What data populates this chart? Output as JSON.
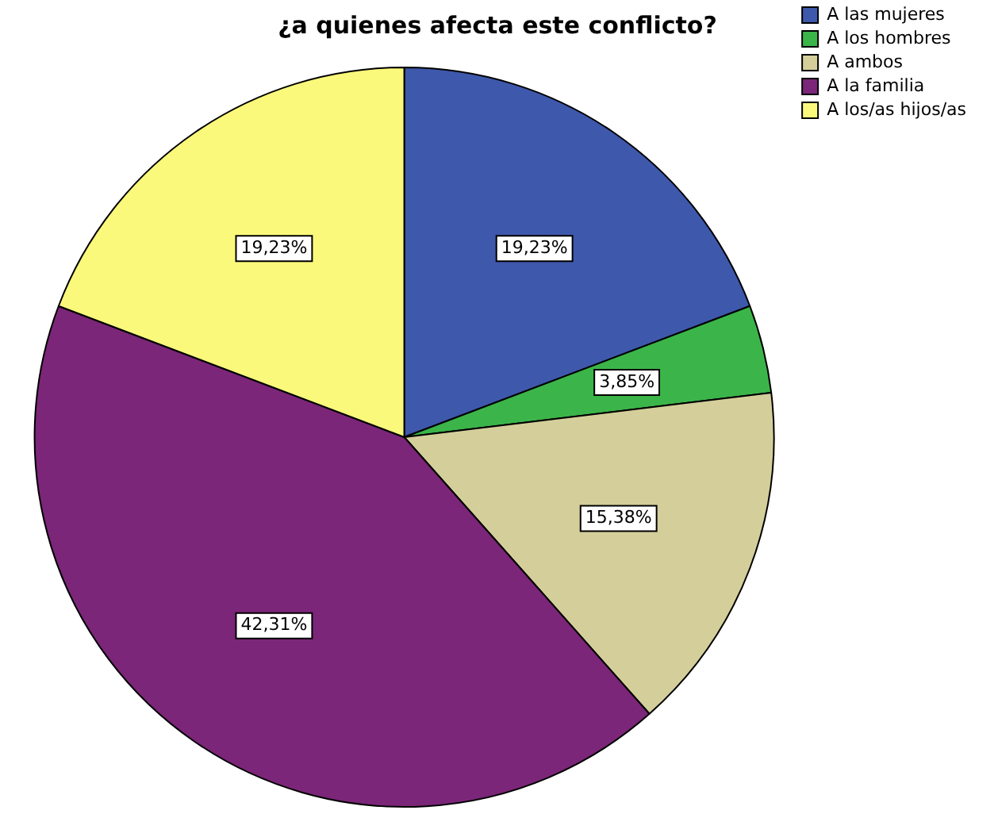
{
  "chart_data": {
    "type": "pie",
    "title": "¿a quienes afecta este conflicto?",
    "categories": [
      "A las mujeres",
      "A los hombres",
      "A ambos",
      "A la familia",
      "A los/as hijos/as"
    ],
    "values": [
      19.23,
      3.85,
      15.38,
      42.31,
      19.23
    ],
    "value_labels": [
      "19,23%",
      "3,85%",
      "15,38%",
      "42,31%",
      "19,23%"
    ],
    "colors": [
      "#3e58ac",
      "#3bb54a",
      "#d4cf9a",
      "#7b2678",
      "#fbf97b"
    ],
    "legend": "top right"
  }
}
